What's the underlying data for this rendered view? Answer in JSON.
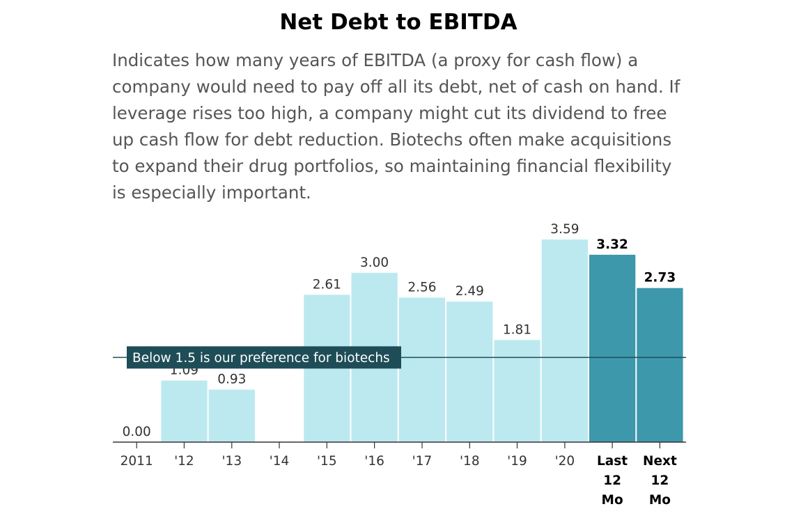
{
  "title": "Net Debt to EBITDA",
  "description": "Indicates how many years of EBITDA (a proxy for cash flow) a company would need to pay off all its debt, net of cash on hand. If leverage rises too high, a company might cut its dividend to free up cash flow for debt reduction. Biotechs often make acquisitions to expand their drug portfolios, so maintaining financial flexibility is especially important.",
  "colors": {
    "bar": "#bce9f0",
    "highlight_bar": "#3d98ab",
    "reference": "#1e4d57",
    "axis": "#333333"
  },
  "chart_data": {
    "type": "bar",
    "title": "Net Debt to EBITDA",
    "xlabel": "",
    "ylabel": "",
    "ylim": [
      0,
      3.59
    ],
    "grid": false,
    "categories": [
      "2011",
      "'12",
      "'13",
      "'14",
      "'15",
      "'16",
      "'17",
      "'18",
      "'19",
      "'20",
      "Last 12 Mo",
      "Next 12 Mo"
    ],
    "category_lines": [
      [
        "2011"
      ],
      [
        "'12"
      ],
      [
        "'13"
      ],
      [
        "'14"
      ],
      [
        "'15"
      ],
      [
        "'16"
      ],
      [
        "'17"
      ],
      [
        "'18"
      ],
      [
        "'19"
      ],
      [
        "'20"
      ],
      [
        "Last",
        "12",
        "Mo"
      ],
      [
        "Next",
        "12",
        "Mo"
      ]
    ],
    "values": [
      0.0,
      1.09,
      0.93,
      null,
      2.61,
      3.0,
      2.56,
      2.49,
      1.81,
      3.59,
      3.32,
      2.73
    ],
    "value_labels": [
      "0.00",
      "1.09",
      "0.93",
      "",
      "2.61",
      "3.00",
      "2.56",
      "2.49",
      "1.81",
      "3.59",
      "3.32",
      "2.73"
    ],
    "highlighted": [
      false,
      false,
      false,
      false,
      false,
      false,
      false,
      false,
      false,
      false,
      true,
      true
    ],
    "reference_line": {
      "value": 1.5,
      "label": "Below 1.5 is our preference for biotechs"
    }
  }
}
